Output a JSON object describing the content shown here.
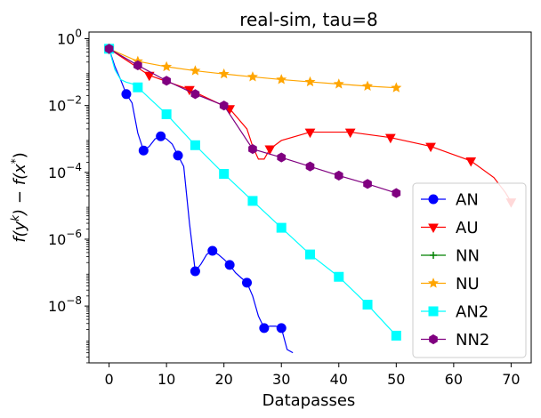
{
  "chart_data": {
    "type": "line",
    "title": "real-sim, tau=8",
    "xlabel": "Datapasses",
    "ylabel": "f(y^k) − f(x*)",
    "ylabel_parts": {
      "f1": "f(y",
      "sup1": "k",
      "mid": ") − f(x",
      "sup2": "*",
      "end": ")"
    },
    "xlim": [
      -3.5,
      73.5
    ],
    "ylim_log10": [
      -9.7,
      0.2
    ],
    "y_scale": "log",
    "grid": false,
    "legend_position": "lower-right",
    "x_ticks": [
      0,
      10,
      20,
      30,
      40,
      50,
      60,
      70
    ],
    "x_tick_labels": [
      "0",
      "10",
      "20",
      "30",
      "40",
      "50",
      "60",
      "70"
    ],
    "y_ticks_log10": [
      0,
      -2,
      -4,
      -6,
      -8
    ],
    "y_tick_labels": [
      {
        "base": "10",
        "exp": "0"
      },
      {
        "base": "10",
        "exp": "−2"
      },
      {
        "base": "10",
        "exp": "−4"
      },
      {
        "base": "10",
        "exp": "−6"
      },
      {
        "base": "10",
        "exp": "−8"
      }
    ],
    "series": [
      {
        "name": "AN",
        "color": "#0000ff",
        "marker": "circle",
        "line": [
          [
            0,
            0.5
          ],
          [
            1,
            0.15
          ],
          [
            2,
            0.06
          ],
          [
            3,
            0.022
          ],
          [
            4,
            0.012
          ],
          [
            5,
            0.0015
          ],
          [
            6,
            0.00045
          ],
          [
            7,
            0.0006
          ],
          [
            8,
            0.001
          ],
          [
            9,
            0.0012
          ],
          [
            10,
            0.001
          ],
          [
            11,
            0.0007
          ],
          [
            12,
            0.00032
          ],
          [
            13,
            0.00015
          ],
          [
            14,
            3e-06
          ],
          [
            15,
            1.1e-07
          ],
          [
            16,
            1.8e-07
          ],
          [
            17,
            3.5e-07
          ],
          [
            18,
            4.5e-07
          ],
          [
            19,
            3.5e-07
          ],
          [
            20,
            2.5e-07
          ],
          [
            21,
            1.7e-07
          ],
          [
            22,
            1e-07
          ],
          [
            23,
            7e-08
          ],
          [
            24,
            5e-08
          ],
          [
            25,
            2e-08
          ],
          [
            26,
            5e-09
          ],
          [
            27,
            2.2e-09
          ],
          [
            28,
            2.5e-09
          ],
          [
            29,
            2.5e-09
          ],
          [
            30,
            2.2e-09
          ],
          [
            31,
            5e-10
          ],
          [
            32,
            4e-10
          ]
        ],
        "markers": [
          [
            0,
            0.5
          ],
          [
            3,
            0.022
          ],
          [
            6,
            0.00045
          ],
          [
            9,
            0.0012
          ],
          [
            12,
            0.00032
          ],
          [
            15,
            1.1e-07
          ],
          [
            18,
            4.5e-07
          ],
          [
            21,
            1.7e-07
          ],
          [
            24,
            5e-08
          ],
          [
            27,
            2.2e-09
          ],
          [
            30,
            2.2e-09
          ]
        ]
      },
      {
        "name": "AU",
        "color": "#ff0000",
        "marker": "triangle-down",
        "line": [
          [
            0,
            0.5
          ],
          [
            7,
            0.08
          ],
          [
            14,
            0.03
          ],
          [
            21,
            0.008
          ],
          [
            24,
            0.002
          ],
          [
            25,
            0.0006
          ],
          [
            26,
            0.00025
          ],
          [
            27,
            0.00025
          ],
          [
            28,
            0.0005
          ],
          [
            30,
            0.0009
          ],
          [
            35,
            0.0016
          ],
          [
            42,
            0.0016
          ],
          [
            49,
            0.0011
          ],
          [
            56,
            0.0006
          ],
          [
            63,
            0.00022
          ],
          [
            67,
            7e-05
          ],
          [
            69,
            2.5e-05
          ],
          [
            70,
            1.3e-05
          ]
        ],
        "markers": [
          [
            0,
            0.5
          ],
          [
            7,
            0.08
          ],
          [
            14,
            0.03
          ],
          [
            21,
            0.008
          ],
          [
            28,
            0.0005
          ],
          [
            35,
            0.0016
          ],
          [
            42,
            0.0016
          ],
          [
            49,
            0.0011
          ],
          [
            56,
            0.0006
          ],
          [
            63,
            0.00022
          ],
          [
            70,
            1.3e-05
          ]
        ]
      },
      {
        "name": "NN",
        "color": "#008000",
        "marker": "plus",
        "line": [
          [
            0,
            0.5
          ]
        ],
        "markers": [
          [
            0,
            0.5
          ]
        ]
      },
      {
        "name": "NU",
        "color": "#ffa500",
        "marker": "star",
        "line": [
          [
            0,
            0.5
          ],
          [
            5,
            0.21
          ],
          [
            10,
            0.145
          ],
          [
            15,
            0.11
          ],
          [
            20,
            0.088
          ],
          [
            25,
            0.072
          ],
          [
            30,
            0.06
          ],
          [
            35,
            0.051
          ],
          [
            40,
            0.044
          ],
          [
            45,
            0.038
          ],
          [
            50,
            0.034
          ]
        ],
        "markers": [
          [
            0,
            0.5
          ],
          [
            5,
            0.21
          ],
          [
            10,
            0.145
          ],
          [
            15,
            0.11
          ],
          [
            20,
            0.088
          ],
          [
            25,
            0.072
          ],
          [
            30,
            0.06
          ],
          [
            35,
            0.051
          ],
          [
            40,
            0.044
          ],
          [
            45,
            0.038
          ],
          [
            50,
            0.034
          ]
        ]
      },
      {
        "name": "AN2",
        "color": "#00ffff",
        "marker": "square",
        "line": [
          [
            0,
            0.5
          ],
          [
            1,
            0.12
          ],
          [
            2,
            0.06
          ],
          [
            3,
            0.05
          ],
          [
            4,
            0.045
          ],
          [
            5,
            0.035
          ],
          [
            10,
            0.0055
          ],
          [
            15,
            0.00065
          ],
          [
            20,
            9e-05
          ],
          [
            25,
            1.4e-05
          ],
          [
            30,
            2.2e-06
          ],
          [
            35,
            3.5e-07
          ],
          [
            40,
            7.5e-08
          ],
          [
            45,
            1.1e-08
          ],
          [
            50,
            1.3e-09
          ]
        ],
        "markers": [
          [
            0,
            0.5
          ],
          [
            5,
            0.035
          ],
          [
            10,
            0.0055
          ],
          [
            15,
            0.00065
          ],
          [
            20,
            9e-05
          ],
          [
            25,
            1.4e-05
          ],
          [
            30,
            2.2e-06
          ],
          [
            35,
            3.5e-07
          ],
          [
            40,
            7.5e-08
          ],
          [
            45,
            1.1e-08
          ],
          [
            50,
            1.3e-09
          ]
        ]
      },
      {
        "name": "NN2",
        "color": "#800080",
        "marker": "hexagon",
        "line": [
          [
            0,
            0.5
          ],
          [
            5,
            0.16
          ],
          [
            10,
            0.055
          ],
          [
            15,
            0.022
          ],
          [
            20,
            0.01
          ],
          [
            25,
            0.0005
          ],
          [
            30,
            0.00028
          ],
          [
            35,
            0.00015
          ],
          [
            40,
            8e-05
          ],
          [
            45,
            4.5e-05
          ],
          [
            50,
            2.4e-05
          ]
        ],
        "markers": [
          [
            0,
            0.5
          ],
          [
            5,
            0.16
          ],
          [
            10,
            0.055
          ],
          [
            15,
            0.022
          ],
          [
            20,
            0.01
          ],
          [
            25,
            0.0005
          ],
          [
            30,
            0.00028
          ],
          [
            35,
            0.00015
          ],
          [
            40,
            8e-05
          ],
          [
            45,
            4.5e-05
          ],
          [
            50,
            2.4e-05
          ]
        ]
      }
    ]
  }
}
